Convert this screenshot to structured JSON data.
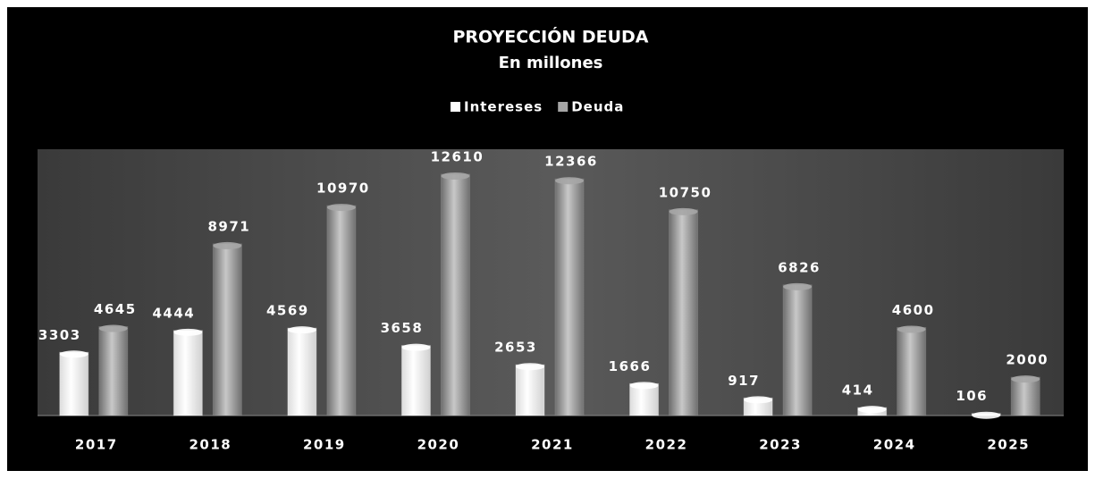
{
  "chart_data": {
    "type": "bar",
    "title": "PROYECCIÓN DEUDA",
    "subtitle": "En millones",
    "categories": [
      "2017",
      "2018",
      "2019",
      "2020",
      "2021",
      "2022",
      "2023",
      "2024",
      "2025"
    ],
    "series": [
      {
        "name": "Intereses",
        "color": "#ffffff",
        "values": [
          3303,
          4444,
          4569,
          3658,
          2653,
          1666,
          917,
          414,
          106
        ]
      },
      {
        "name": "Deuda",
        "color": "#a6a6a6",
        "values": [
          4645,
          8971,
          10970,
          12610,
          12366,
          10750,
          6826,
          4600,
          2000
        ]
      }
    ],
    "legend": "top"
  }
}
